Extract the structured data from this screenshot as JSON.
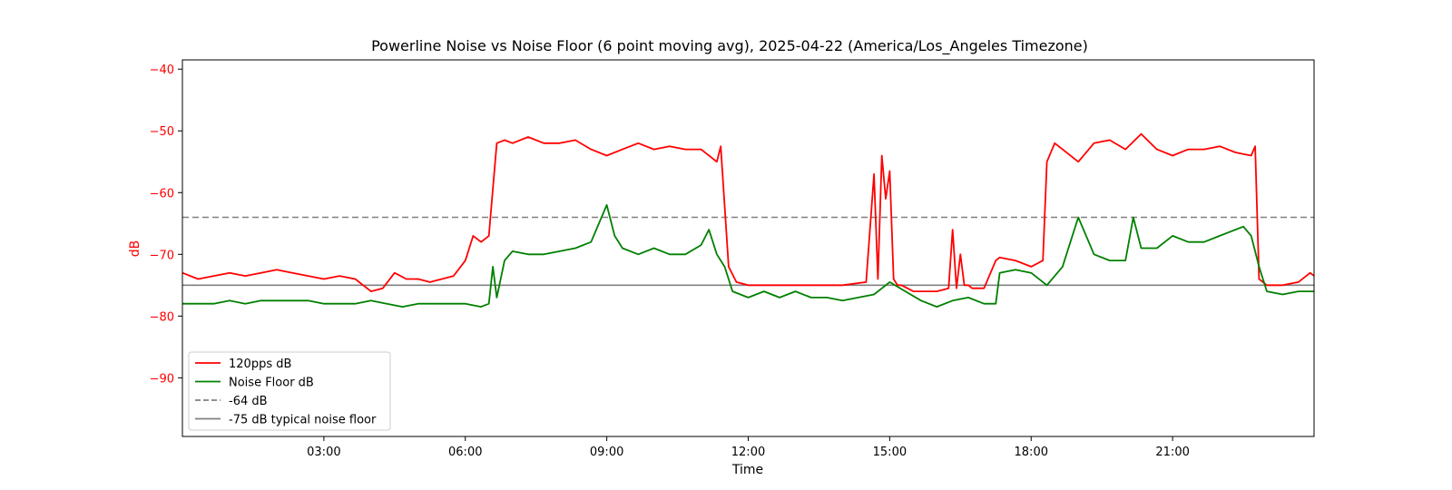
{
  "chart_data": {
    "type": "line",
    "title": "Powerline Noise vs Noise Floor (6 point moving avg), 2025-04-22 (America/Los_Angeles Timezone)",
    "xlabel": "Time",
    "ylabel": "dB",
    "xlim": [
      "00:00",
      "24:00"
    ],
    "ylim": [
      -99.5,
      -38.5
    ],
    "x_ticks": [
      "03:00",
      "06:00",
      "09:00",
      "12:00",
      "15:00",
      "18:00",
      "21:00"
    ],
    "y_ticks": [
      -40,
      -50,
      -60,
      -70,
      -80,
      -90
    ],
    "ylabel_color": "#ff0000",
    "grid": false,
    "legend_position": "lower-left",
    "series": [
      {
        "name": "120pps dB",
        "color": "#ff0000",
        "style": "solid",
        "x": [
          "00:00",
          "00:20",
          "00:40",
          "01:00",
          "01:20",
          "01:40",
          "02:00",
          "02:20",
          "02:40",
          "03:00",
          "03:20",
          "03:40",
          "04:00",
          "04:15",
          "04:30",
          "04:45",
          "05:00",
          "05:15",
          "05:30",
          "05:45",
          "06:00",
          "06:10",
          "06:20",
          "06:30",
          "06:40",
          "06:50",
          "07:00",
          "07:20",
          "07:40",
          "08:00",
          "08:20",
          "08:40",
          "09:00",
          "09:20",
          "09:40",
          "10:00",
          "10:20",
          "10:40",
          "11:00",
          "11:20",
          "11:25",
          "11:35",
          "11:45",
          "12:00",
          "12:30",
          "13:00",
          "13:30",
          "14:00",
          "14:30",
          "14:40",
          "14:45",
          "14:50",
          "14:55",
          "15:00",
          "15:05",
          "15:10",
          "15:15",
          "15:30",
          "16:00",
          "16:15",
          "16:20",
          "16:25",
          "16:30",
          "16:35",
          "16:40",
          "16:45",
          "17:00",
          "17:15",
          "17:20",
          "17:40",
          "18:00",
          "18:15",
          "18:20",
          "18:30",
          "18:40",
          "19:00",
          "19:20",
          "19:40",
          "20:00",
          "20:20",
          "20:40",
          "21:00",
          "21:20",
          "21:40",
          "22:00",
          "22:20",
          "22:40",
          "22:45",
          "22:50",
          "23:00",
          "23:20",
          "23:40",
          "23:55",
          "24:00"
        ],
        "y": [
          -73,
          -74,
          -73.5,
          -73,
          -73.5,
          -73,
          -72.5,
          -73,
          -73.5,
          -74,
          -73.5,
          -74,
          -76,
          -75.5,
          -73,
          -74,
          -74,
          -74.5,
          -74,
          -73.5,
          -71,
          -67,
          -68,
          -67,
          -52,
          -51.5,
          -52,
          -51,
          -52,
          -52,
          -51.5,
          -53,
          -54,
          -53,
          -52,
          -53,
          -52.5,
          -53,
          -53,
          -55,
          -52.5,
          -72,
          -74.5,
          -75,
          -75,
          -75,
          -75,
          -75,
          -74.5,
          -57,
          -74,
          -54,
          -61,
          -56.5,
          -74,
          -75,
          -75,
          -76,
          -76,
          -75.5,
          -66,
          -75.5,
          -70,
          -75,
          -75,
          -75.5,
          -75.5,
          -71,
          -70.5,
          -71,
          -72,
          -71,
          -55,
          -52,
          -53,
          -55,
          -52,
          -51.5,
          -53,
          -50.5,
          -53,
          -54,
          -53,
          -53,
          -52.5,
          -53.5,
          -54,
          -52.5,
          -74,
          -75,
          -75,
          -74.5,
          -73,
          -73.5
        ]
      },
      {
        "name": "Noise Floor dB",
        "color": "#008000",
        "style": "solid",
        "x": [
          "00:00",
          "00:20",
          "00:40",
          "01:00",
          "01:20",
          "01:40",
          "02:00",
          "02:20",
          "02:40",
          "03:00",
          "03:20",
          "03:40",
          "04:00",
          "04:20",
          "04:40",
          "05:00",
          "05:20",
          "05:40",
          "06:00",
          "06:20",
          "06:30",
          "06:35",
          "06:40",
          "06:50",
          "07:00",
          "07:20",
          "07:40",
          "08:00",
          "08:20",
          "08:40",
          "09:00",
          "09:10",
          "09:20",
          "09:40",
          "10:00",
          "10:20",
          "10:40",
          "11:00",
          "11:10",
          "11:20",
          "11:30",
          "11:40",
          "12:00",
          "12:20",
          "12:40",
          "13:00",
          "13:20",
          "13:40",
          "14:00",
          "14:20",
          "14:40",
          "15:00",
          "15:20",
          "15:40",
          "16:00",
          "16:20",
          "16:40",
          "17:00",
          "17:15",
          "17:20",
          "17:40",
          "18:00",
          "18:20",
          "18:40",
          "18:50",
          "19:00",
          "19:20",
          "19:40",
          "20:00",
          "20:10",
          "20:20",
          "20:40",
          "21:00",
          "21:20",
          "21:40",
          "22:00",
          "22:20",
          "22:30",
          "22:40",
          "22:50",
          "23:00",
          "23:20",
          "23:40",
          "24:00"
        ],
        "y": [
          -78,
          -78,
          -78,
          -77.5,
          -78,
          -77.5,
          -77.5,
          -77.5,
          -77.5,
          -78,
          -78,
          -78,
          -77.5,
          -78,
          -78.5,
          -78,
          -78,
          -78,
          -78,
          -78.5,
          -78,
          -72,
          -77,
          -71,
          -69.5,
          -70,
          -70,
          -69.5,
          -69,
          -68,
          -62,
          -67,
          -69,
          -70,
          -69,
          -70,
          -70,
          -68.5,
          -66,
          -70,
          -72,
          -76,
          -77,
          -76,
          -77,
          -76,
          -77,
          -77,
          -77.5,
          -77,
          -76.5,
          -74.5,
          -76,
          -77.5,
          -78.5,
          -77.5,
          -77,
          -78,
          -78,
          -73,
          -72.5,
          -73,
          -75,
          -72,
          -68,
          -64,
          -70,
          -71,
          -71,
          -64,
          -69,
          -69,
          -67,
          -68,
          -68,
          -67,
          -66,
          -65.5,
          -67,
          -72,
          -76,
          -76.5,
          -76,
          -76
        ]
      },
      {
        "name": "-64 dB",
        "color": "#808080",
        "style": "dashed",
        "x": [
          "00:00",
          "24:00"
        ],
        "y": [
          -64,
          -64
        ]
      },
      {
        "name": "-75 dB typical noise floor",
        "color": "#808080",
        "style": "solid",
        "x": [
          "00:00",
          "24:00"
        ],
        "y": [
          -75,
          -75
        ]
      }
    ]
  }
}
